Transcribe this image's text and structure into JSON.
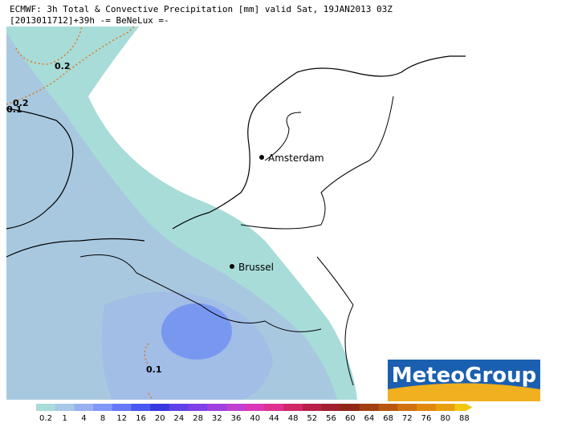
{
  "header": {
    "line1": "ECMWF: 3h Total & Convective Precipitation [mm] valid Sat, 19JAN2013 03Z",
    "line2": "[2013011712]+39h  -= BeNeLux =-"
  },
  "cities": [
    {
      "label": "Amsterdam"
    },
    {
      "label": "Brussel"
    }
  ],
  "contour_labels": [
    "0.2",
    "0.2",
    "0.1",
    "0.1"
  ],
  "logo": "MeteoGroup",
  "legend": {
    "labels": [
      "0.2",
      "1",
      "4",
      "8",
      "12",
      "16",
      "20",
      "24",
      "28",
      "32",
      "36",
      "40",
      "44",
      "48",
      "52",
      "56",
      "60",
      "64",
      "68",
      "72",
      "76",
      "80",
      "88"
    ],
    "colors": [
      "#a8dcd8",
      "#a8c8e8",
      "#98b0f0",
      "#8098f8",
      "#6878f8",
      "#4858f0",
      "#3838e0",
      "#6040e8",
      "#8040e8",
      "#a040e0",
      "#c040d0",
      "#d838b8",
      "#e03090",
      "#d02868",
      "#b82048",
      "#a02030",
      "#902818",
      "#a04010",
      "#b85810",
      "#d07010",
      "#e08810",
      "#e8a010",
      "#f0c810"
    ]
  }
}
